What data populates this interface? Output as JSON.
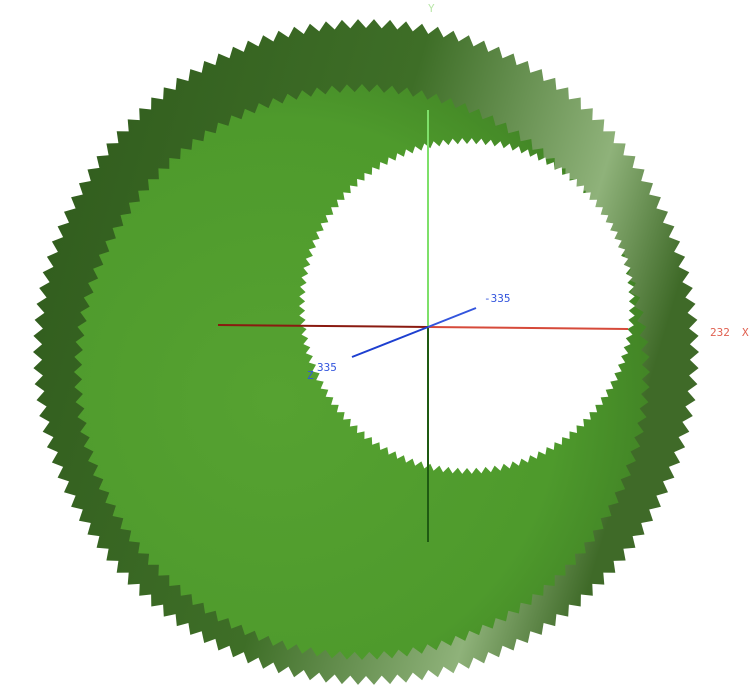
{
  "axes": {
    "y": {
      "label": "Y"
    },
    "x": {
      "label": "X",
      "value": "232"
    },
    "z": {
      "label": "Z",
      "negative": "-335",
      "positive": "335"
    }
  }
}
